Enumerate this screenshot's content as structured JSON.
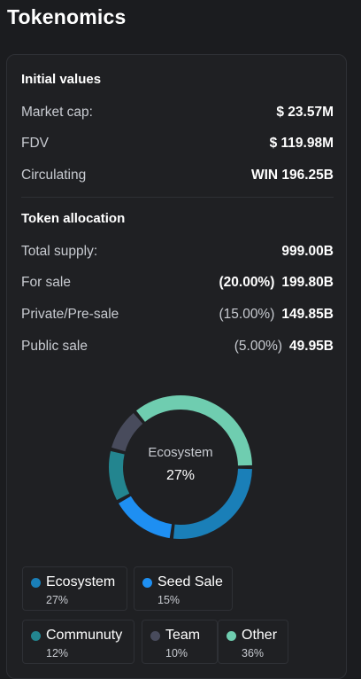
{
  "page": {
    "title": "Tokenomics"
  },
  "initial": {
    "title": "Initial values",
    "market_cap": {
      "label": "Market cap:",
      "value": "$ 23.57M"
    },
    "fdv": {
      "label": "FDV",
      "value": "$ 119.98M"
    },
    "circulating": {
      "label": "Circulating",
      "value": "WIN 196.25B"
    }
  },
  "allocation": {
    "title": "Token allocation",
    "total_supply": {
      "label": "Total supply:",
      "value": "999.00B"
    },
    "for_sale": {
      "label": "For sale",
      "pct": "(20.00%)",
      "value": "199.80B"
    },
    "private": {
      "label": "Private/Pre-sale",
      "pct": "(15.00%)",
      "value": "149.85B"
    },
    "public": {
      "label": "Public sale",
      "pct": "(5.00%)",
      "value": "49.95B"
    }
  },
  "donut": {
    "center_label": "Ecosystem",
    "center_value": "27%",
    "segments": [
      {
        "name": "Ecosystem",
        "percent": 27,
        "color": "#1a7fb8"
      },
      {
        "name": "Seed Sale",
        "percent": 15,
        "color": "#1e8ff2"
      },
      {
        "name": "Communuty",
        "percent": 12,
        "color": "#23858f"
      },
      {
        "name": "Team",
        "percent": 10,
        "color": "#484b5c"
      },
      {
        "name": "Other",
        "percent": 36,
        "color": "#6fcdb0"
      }
    ]
  },
  "legend": [
    {
      "name": "Ecosystem",
      "pct": "27%",
      "color": "#1a7fb8"
    },
    {
      "name": "Seed Sale",
      "pct": "15%",
      "color": "#1e8ff2"
    },
    {
      "name": "Communuty",
      "pct": "12%",
      "color": "#23858f"
    },
    {
      "name": "Team",
      "pct": "10%",
      "color": "#484b5c"
    },
    {
      "name": "Other",
      "pct": "36%",
      "color": "#6fcdb0"
    }
  ]
}
